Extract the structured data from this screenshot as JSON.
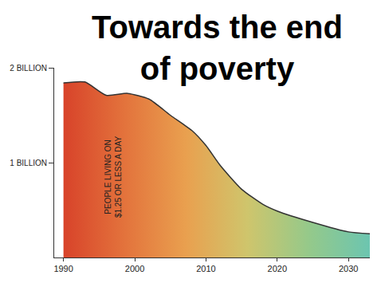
{
  "chart_data": {
    "type": "area",
    "title": "Towards the end of poverty",
    "annotations": [
      "PEOPLE LIVING ON $1.25 OR LESS A DAY"
    ],
    "x": [
      1990,
      1993,
      1996,
      1999,
      2002,
      2005,
      2008,
      2010,
      2012,
      2015,
      2018,
      2020,
      2025,
      2030,
      2033
    ],
    "values": [
      1.84,
      1.85,
      1.71,
      1.73,
      1.67,
      1.5,
      1.34,
      1.18,
      0.97,
      0.72,
      0.56,
      0.49,
      0.37,
      0.27,
      0.25
    ],
    "colors": [
      "#d8432a",
      "#e3733c",
      "#e9a04f",
      "#cfc56c",
      "#95c98a",
      "#6cc5b0"
    ],
    "xlim": [
      1988.7,
      2033
    ],
    "xticks": [
      1990,
      2000,
      2010,
      2020,
      2030
    ],
    "ylim": [
      0,
      2
    ],
    "yticks": [
      {
        "value": 1,
        "label": "1 BILLION"
      },
      {
        "value": 2,
        "label": "2 BILLION"
      }
    ],
    "grid": false
  }
}
